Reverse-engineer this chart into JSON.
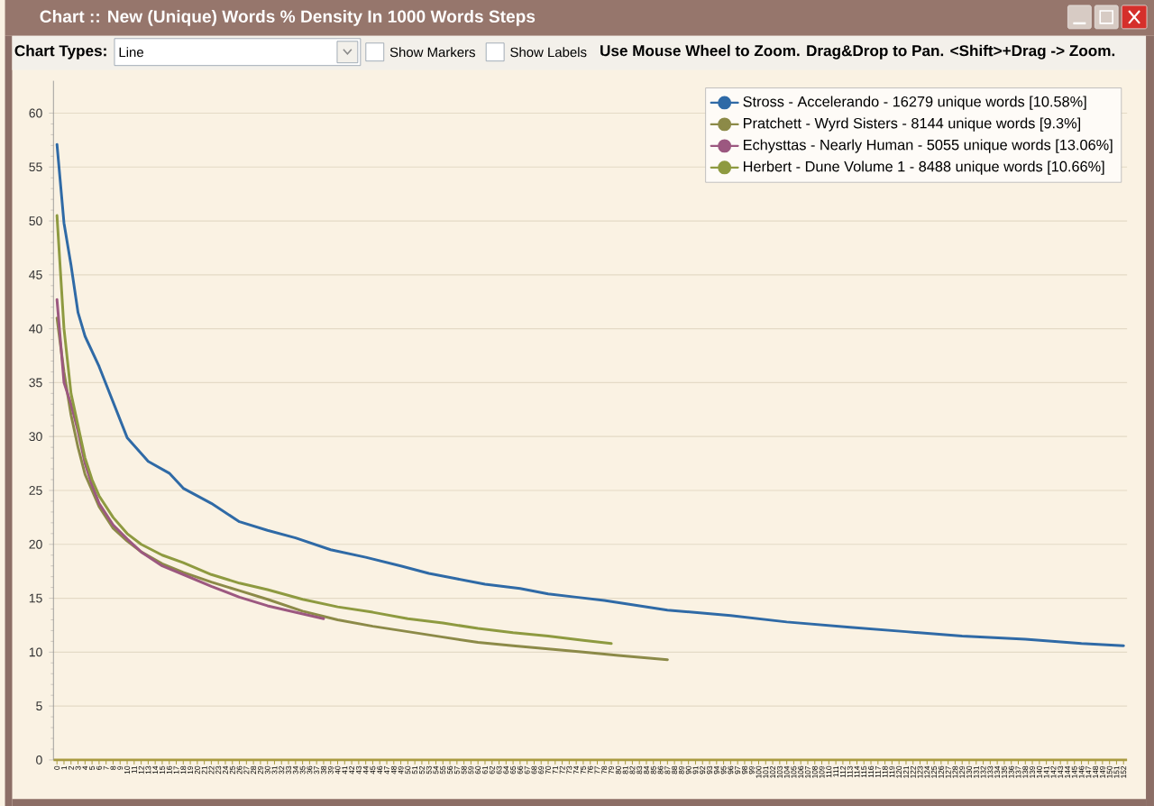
{
  "chart_data": {
    "type": "line",
    "title": "Chart :: New (Unique) Words % Density In 1000 Words Steps",
    "annotations": [
      "Chart Types:",
      "Line",
      "Show Markers",
      "Show Labels",
      "Use Mouse Wheel to Zoom. Drag&Drop to Pan. <Shift>+Drag -> Zoom."
    ],
    "xlim": [
      -0.5,
      152.5
    ],
    "xticks": [
      0,
      1,
      2,
      3,
      4,
      5,
      6,
      7,
      8,
      9,
      10,
      11,
      12,
      13,
      14,
      15,
      16,
      17,
      18,
      19,
      20,
      21,
      22,
      23,
      24,
      25,
      26,
      27,
      28,
      29,
      30,
      31,
      32,
      33,
      34,
      35,
      36,
      37,
      38,
      39,
      40,
      41,
      42,
      43,
      44,
      45,
      46,
      47,
      48,
      49,
      50,
      51,
      52,
      53,
      54,
      55,
      56,
      57,
      58,
      59,
      60,
      61,
      62,
      63,
      64,
      65,
      66,
      67,
      68,
      69,
      70,
      71,
      72,
      73,
      74,
      75,
      76,
      77,
      78,
      79,
      80,
      81,
      82,
      83,
      84,
      85,
      86,
      87,
      88,
      89,
      90,
      91,
      92,
      93,
      94,
      95,
      96,
      97,
      98,
      99,
      100,
      101,
      102,
      103,
      104,
      105,
      106,
      107,
      108,
      109,
      110,
      111,
      112,
      113,
      114,
      115,
      116,
      117,
      118,
      119,
      120,
      121,
      122,
      123,
      124,
      125,
      126,
      127,
      128,
      129,
      130,
      131,
      132,
      133,
      134,
      135,
      136,
      137,
      138,
      139,
      140,
      141,
      142,
      143,
      144,
      145,
      146,
      147,
      148,
      149,
      150,
      151,
      152
    ],
    "ylim": [
      0,
      63
    ],
    "yticks": [
      0,
      5,
      10,
      15,
      20,
      25,
      30,
      35,
      40,
      45,
      50,
      55,
      60
    ],
    "grid": "y",
    "legend": "top right",
    "line_style": "solid",
    "series": [
      {
        "name": "Stross - Accelerando - 16279 unique words [10.58%]",
        "color": "#2f6aa6",
        "x": [
          0,
          1,
          2,
          3,
          4,
          6,
          8,
          10,
          13,
          16,
          18,
          22,
          26,
          30,
          34,
          39,
          44,
          49,
          53,
          57,
          61,
          66,
          70,
          74,
          78,
          87,
          96,
          104,
          113,
          121,
          129,
          138,
          146,
          152
        ],
        "values": [
          57.1,
          49.8,
          45.9,
          41.5,
          39.3,
          36.5,
          33.2,
          29.9,
          27.7,
          26.6,
          25.2,
          23.8,
          22.1,
          21.3,
          20.6,
          19.5,
          18.8,
          18.0,
          17.3,
          16.8,
          16.3,
          15.9,
          15.4,
          15.1,
          14.8,
          13.9,
          13.4,
          12.8,
          12.3,
          11.9,
          11.5,
          11.2,
          10.8,
          10.6
        ]
      },
      {
        "name": "Pratchett - Wyrd Sisters - 8144 unique words [9.3%]",
        "color": "#8c8a48",
        "x": [
          0,
          1,
          2,
          3,
          4,
          5,
          6,
          8,
          10,
          12,
          15,
          18,
          22,
          26,
          30,
          35,
          40,
          45,
          50,
          55,
          60,
          65,
          70,
          75,
          80,
          87
        ],
        "values": [
          41.0,
          36.0,
          32.0,
          29.0,
          26.5,
          25.0,
          23.5,
          21.5,
          20.3,
          19.3,
          18.2,
          17.4,
          16.5,
          15.7,
          14.9,
          13.8,
          13.0,
          12.4,
          11.9,
          11.4,
          10.9,
          10.6,
          10.3,
          10.0,
          9.7,
          9.3
        ]
      },
      {
        "name": "Echysttas - Nearly Human - 5055 unique words [13.06%]",
        "color": "#9c5880",
        "x": [
          0,
          1,
          2,
          3,
          4,
          5,
          6,
          8,
          10,
          12,
          15,
          18,
          22,
          26,
          30,
          34,
          38
        ],
        "values": [
          42.7,
          35.0,
          33.0,
          30.5,
          27.5,
          25.5,
          23.8,
          21.8,
          20.5,
          19.3,
          18.0,
          17.2,
          16.1,
          15.1,
          14.3,
          13.7,
          13.1
        ]
      },
      {
        "name": "Herbert - Dune Volume 1 - 8488 unique words [10.66%]",
        "color": "#8e9a40",
        "x": [
          0,
          1,
          2,
          3,
          4,
          5,
          6,
          8,
          10,
          12,
          15,
          18,
          22,
          26,
          30,
          35,
          40,
          45,
          50,
          55,
          60,
          65,
          70,
          75,
          79
        ],
        "values": [
          50.5,
          40.0,
          34.0,
          31.0,
          28.0,
          26.0,
          24.5,
          22.5,
          21.0,
          20.0,
          19.0,
          18.3,
          17.2,
          16.4,
          15.8,
          14.9,
          14.2,
          13.7,
          13.1,
          12.7,
          12.2,
          11.8,
          11.5,
          11.1,
          10.8
        ]
      }
    ]
  }
}
